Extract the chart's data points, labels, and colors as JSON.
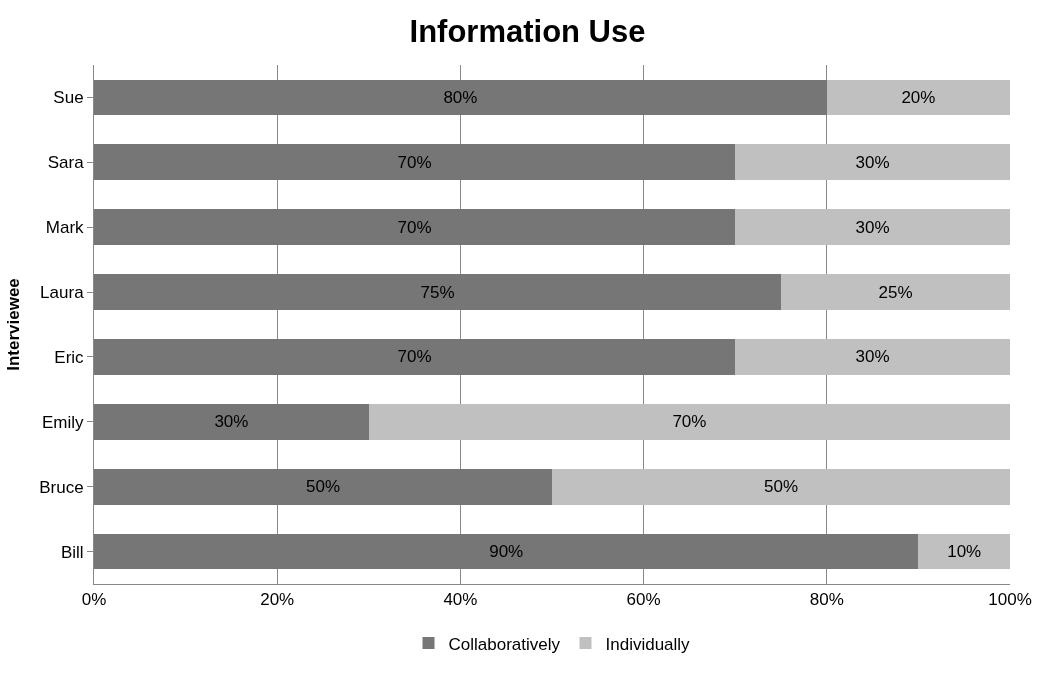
{
  "chart_data": {
    "type": "bar",
    "orientation": "horizontal",
    "stacked": true,
    "title": "Information Use",
    "ylabel": "Interviewee",
    "categories": [
      "Sue",
      "Sara",
      "Mark",
      "Laura",
      "Eric",
      "Emily",
      "Bruce",
      "Bill"
    ],
    "series": [
      {
        "name": "Collaboratively",
        "color": "#767676",
        "values": [
          80,
          70,
          70,
          75,
          70,
          30,
          50,
          90
        ],
        "value_labels": [
          "80%",
          "70%",
          "70%",
          "75%",
          "70%",
          "30%",
          "50%",
          "90%"
        ]
      },
      {
        "name": "Individually",
        "color": "#c0c0c0",
        "values": [
          20,
          30,
          30,
          25,
          30,
          70,
          50,
          10
        ],
        "value_labels": [
          "20%",
          "30%",
          "30%",
          "25%",
          "30%",
          "70%",
          "50%",
          "10%"
        ]
      }
    ],
    "xlim": [
      0,
      100
    ],
    "xticks": [
      {
        "value": 0,
        "label": "0%"
      },
      {
        "value": 20,
        "label": "20%"
      },
      {
        "value": 40,
        "label": "40%"
      },
      {
        "value": 60,
        "label": "60%"
      },
      {
        "value": 80,
        "label": "80%"
      },
      {
        "value": 100,
        "label": "100%"
      }
    ],
    "grid": "x",
    "legend": "bottom"
  }
}
